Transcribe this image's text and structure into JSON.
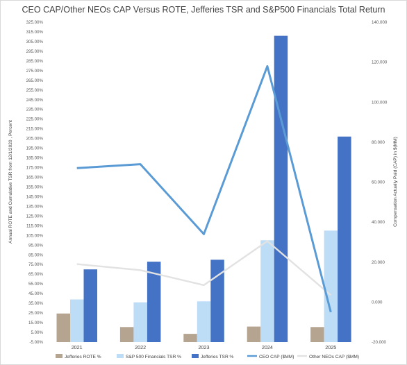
{
  "chart_data": {
    "type": "bar",
    "title": "CEO CAP/Other NEOs CAP Versus ROTE, Jefferies TSR and S&P500 Financials Total Return",
    "categories": [
      "2021",
      "2022",
      "2023",
      "2024",
      "2025"
    ],
    "y_left": {
      "label": "Annual ROTE and Cumulative TSR from 12/1/2020 , Percent",
      "ylim": [
        -5,
        325
      ],
      "ticks": [
        "-5.00%",
        "5.00%",
        "15.00%",
        "25.00%",
        "35.00%",
        "45.00%",
        "55.00%",
        "65.00%",
        "75.00%",
        "85.00%",
        "95.00%",
        "105.00%",
        "115.00%",
        "125.00%",
        "135.00%",
        "145.00%",
        "155.00%",
        "165.00%",
        "175.00%",
        "185.00%",
        "195.00%",
        "205.00%",
        "215.00%",
        "225.00%",
        "235.00%",
        "245.00%",
        "255.00%",
        "265.00%",
        "275.00%",
        "285.00%",
        "295.00%",
        "305.00%",
        "315.00%",
        "325.00%"
      ]
    },
    "y_right": {
      "label": "Compensation Actually Paid (CAP) in $(MM)",
      "ylim": [
        -20000,
        140000
      ],
      "ticks": [
        "-20.000",
        "0.000",
        "20.000",
        "40.000",
        "60.000",
        "80.000",
        "100.000",
        "120.000",
        "140.000"
      ]
    },
    "bar_series": [
      {
        "name": "Jefferies ROTE %",
        "color": "#b5a48f",
        "values": [
          24.5,
          10.5,
          3.5,
          11,
          10.5
        ]
      },
      {
        "name": "S&P 500 Financials TSR %",
        "color": "#bddcf5",
        "values": [
          39,
          36,
          37,
          100,
          110
        ]
      },
      {
        "name": "Jefferies TSR %",
        "color": "#4472c4",
        "values": [
          70,
          78,
          80,
          311,
          207
        ]
      }
    ],
    "line_series": [
      {
        "name": "CEO CAP ($MM)",
        "color": "#5b9bd5",
        "values": [
          67000,
          69000,
          34000,
          118000,
          -5000
        ]
      },
      {
        "name": "Other NEOs CAP ($MM)",
        "color": "#e2e2e2",
        "values": [
          19000,
          16000,
          8500,
          30500,
          3500
        ]
      }
    ],
    "grid": false,
    "legend": "bottom"
  }
}
